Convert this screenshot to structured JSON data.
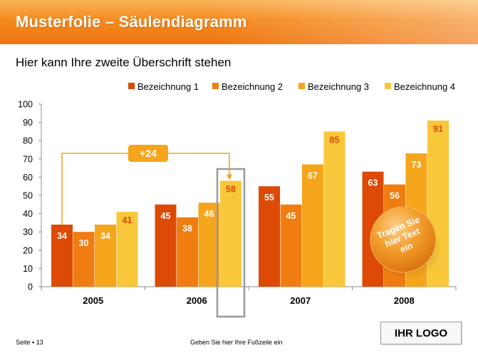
{
  "header": {
    "title": "Musterfolie – Säulendiagramm"
  },
  "subtitle": "Hier kann Ihre zweite Überschrift stehen",
  "footer": {
    "page": "Seite ▪ 13",
    "text": "Geben Sie hier Ihre Fußzeile ein"
  },
  "logo": "IHR LOGO",
  "callout": {
    "text": "+24"
  },
  "bubble": {
    "line1": "Tragen Sie",
    "line2": "hier Text",
    "line3": "ein"
  },
  "colors": {
    "series": [
      "#dc4a06",
      "#ef7d12",
      "#f5a51b",
      "#f9c73a"
    ],
    "label_dark": "#dc4a06",
    "label_light": "#ffffff",
    "accent": "#f5a51b"
  },
  "chart_data": {
    "type": "bar",
    "categories": [
      "2005",
      "2006",
      "2007",
      "2008"
    ],
    "series": [
      {
        "name": "Bezeichnung 1",
        "values": [
          34,
          45,
          55,
          63
        ]
      },
      {
        "name": "Bezeichnung 2",
        "values": [
          30,
          38,
          45,
          56
        ]
      },
      {
        "name": "Bezeichnung 3",
        "values": [
          34,
          46,
          67,
          73
        ]
      },
      {
        "name": "Bezeichnung 4",
        "values": [
          41,
          58,
          85,
          91
        ]
      }
    ],
    "ylim": [
      0,
      100
    ],
    "yticks": [
      0,
      10,
      20,
      30,
      40,
      50,
      60,
      70,
      80,
      90,
      100
    ],
    "legend": "top-right",
    "grid": false
  }
}
